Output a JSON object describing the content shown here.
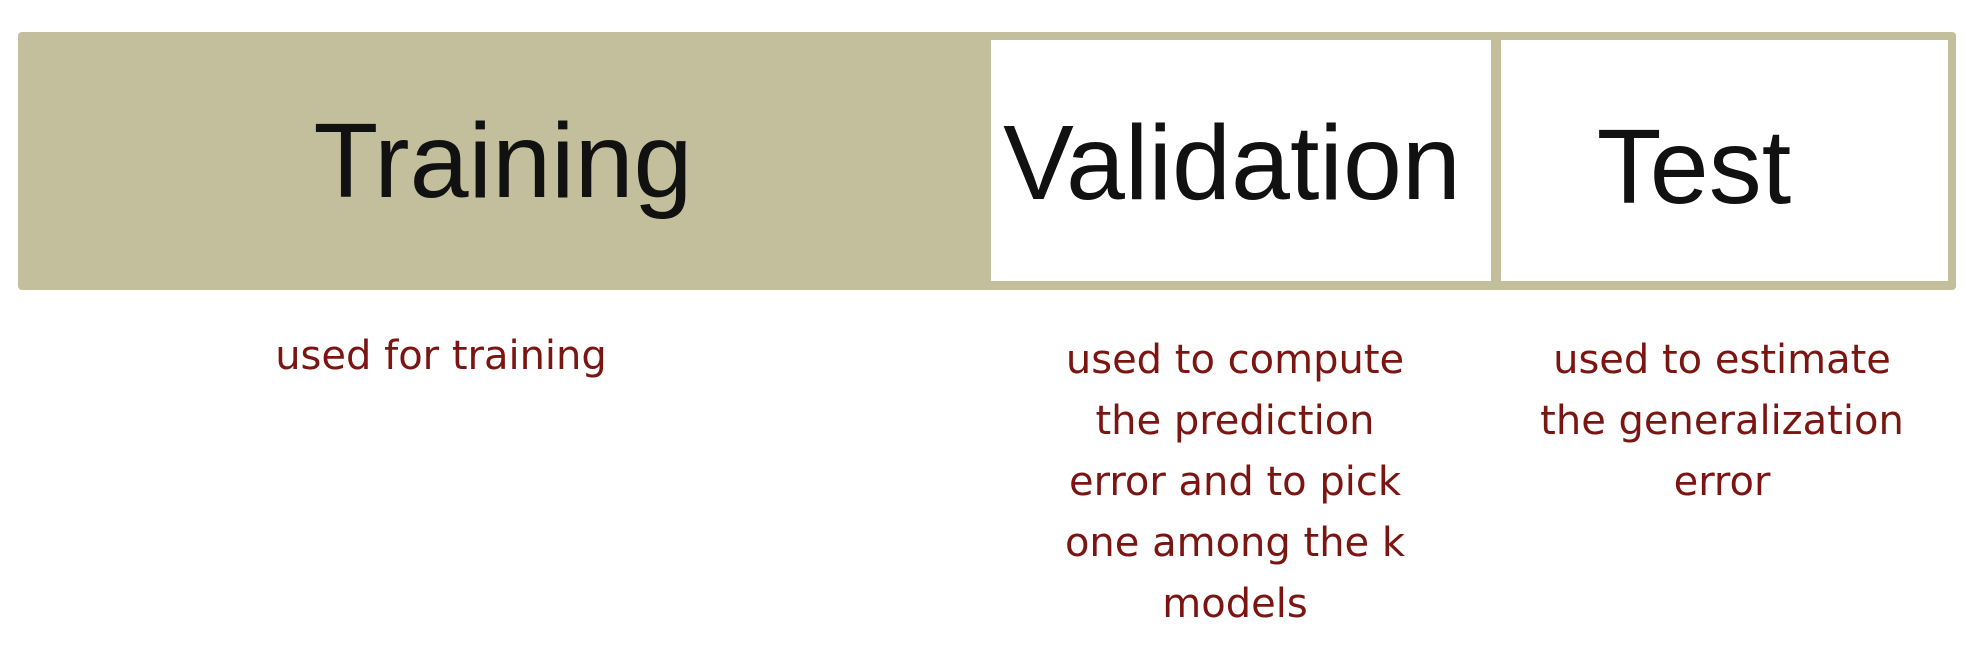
{
  "segments": [
    {
      "label": "Training",
      "color": "#c3bf9d",
      "description": "used for training"
    },
    {
      "label": "Validation",
      "color": "#ffffff",
      "description": "used to compute the prediction error and to pick one among the k models"
    },
    {
      "label": "Test",
      "color": "#ffffff",
      "description": "used to estimate the generalization error"
    }
  ],
  "colors": {
    "bar": "#c3bf9d",
    "label_text": "#111111",
    "description_text": "#7b1512"
  }
}
